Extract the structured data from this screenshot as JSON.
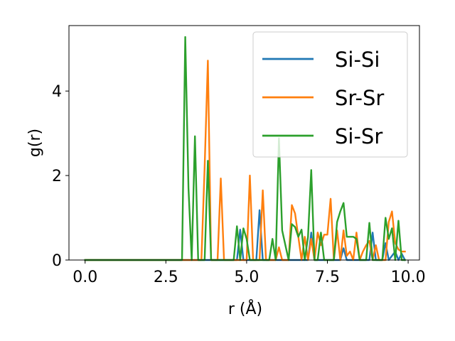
{
  "chart_data": {
    "type": "line",
    "xlabel": "r (Å)",
    "ylabel": "g(r)",
    "xlim": [
      -0.5,
      10.35
    ],
    "ylim": [
      0,
      5.55
    ],
    "xticks": [
      0.0,
      2.5,
      5.0,
      7.5,
      10.0
    ],
    "xtick_labels": [
      "0.0",
      "2.5",
      "5.0",
      "7.5",
      "10.0"
    ],
    "yticks": [
      0,
      2,
      4
    ],
    "ytick_labels": [
      "0",
      "2",
      "4"
    ],
    "grid": false,
    "legend_position": "top-right",
    "series": [
      {
        "name": "Si-Si",
        "color": "#1f77b4",
        "x": [
          0.0,
          4.7,
          4.8,
          4.9,
          5.0,
          5.3,
          5.4,
          5.5,
          6.9,
          7.0,
          7.1,
          7.9,
          8.0,
          8.1,
          8.8,
          8.9,
          9.0,
          9.2,
          9.3,
          9.4,
          9.6,
          9.7,
          9.8,
          9.9
        ],
        "y": [
          0.0,
          0.0,
          0.72,
          0.0,
          0.0,
          0.0,
          1.18,
          0.0,
          0.0,
          0.65,
          0.0,
          0.0,
          0.28,
          0.0,
          0.0,
          0.65,
          0.0,
          0.0,
          0.4,
          0.0,
          0.2,
          0.0,
          0.15,
          0.0
        ]
      },
      {
        "name": "Sr-Sr",
        "color": "#ff7f0e",
        "x": [
          0.0,
          3.6,
          3.7,
          3.8,
          3.9,
          4.0,
          4.1,
          4.2,
          4.3,
          5.0,
          5.1,
          5.2,
          5.4,
          5.5,
          5.6,
          5.9,
          6.0,
          6.1,
          6.3,
          6.4,
          6.5,
          6.7,
          6.8,
          6.9,
          7.0,
          7.1,
          7.2,
          7.3,
          7.4,
          7.5,
          7.6,
          7.7,
          7.8,
          7.9,
          8.0,
          8.1,
          8.2,
          8.3,
          8.4,
          8.5,
          8.6,
          8.7,
          8.8,
          8.9,
          9.0,
          9.1,
          9.2,
          9.3,
          9.4,
          9.5,
          9.6,
          9.7,
          9.8,
          9.9
        ],
        "y": [
          0.0,
          0.0,
          2.2,
          4.72,
          0.0,
          0.0,
          0.0,
          1.93,
          0.0,
          0.0,
          2.0,
          0.0,
          0.0,
          1.65,
          0.0,
          0.0,
          0.3,
          0.0,
          0.0,
          1.3,
          1.1,
          0.0,
          0.55,
          0.0,
          0.5,
          0.0,
          0.65,
          0.35,
          0.6,
          0.6,
          1.45,
          0.0,
          0.7,
          0.0,
          0.7,
          0.1,
          0.2,
          0.0,
          0.65,
          0.0,
          0.2,
          0.35,
          0.45,
          0.0,
          0.35,
          0.0,
          0.0,
          0.0,
          0.9,
          1.15,
          0.4,
          0.25,
          0.2,
          0.2
        ]
      },
      {
        "name": "Si-Sr",
        "color": "#2ca02c",
        "x": [
          0.0,
          3.0,
          3.1,
          3.2,
          3.3,
          3.4,
          3.5,
          3.7,
          3.8,
          3.9,
          4.6,
          4.7,
          4.8,
          4.9,
          5.0,
          5.1,
          5.7,
          5.8,
          5.9,
          6.0,
          6.1,
          6.3,
          6.4,
          6.5,
          6.6,
          6.7,
          6.8,
          6.9,
          7.0,
          7.1,
          7.2,
          7.3,
          7.4,
          7.5,
          7.6,
          7.7,
          7.8,
          7.9,
          8.0,
          8.1,
          8.2,
          8.3,
          8.4,
          8.5,
          8.6,
          8.7,
          8.8,
          8.9,
          9.0,
          9.1,
          9.2,
          9.3,
          9.4,
          9.5,
          9.6,
          9.7,
          9.8,
          9.9
        ],
        "y": [
          0.0,
          0.0,
          5.28,
          1.7,
          0.0,
          2.93,
          0.0,
          0.0,
          2.35,
          0.0,
          0.0,
          0.8,
          0.0,
          0.75,
          0.5,
          0.0,
          0.0,
          0.5,
          0.0,
          2.88,
          0.7,
          0.0,
          0.85,
          0.78,
          0.55,
          0.72,
          0.0,
          0.55,
          2.13,
          0.0,
          0.0,
          0.65,
          0.0,
          0.0,
          0.0,
          0.0,
          0.9,
          1.15,
          1.35,
          0.55,
          0.55,
          0.55,
          0.5,
          0.0,
          0.0,
          0.0,
          0.88,
          0.0,
          0.0,
          0.0,
          0.0,
          1.0,
          0.5,
          0.75,
          0.0,
          0.93,
          0.0,
          0.0
        ]
      }
    ]
  }
}
